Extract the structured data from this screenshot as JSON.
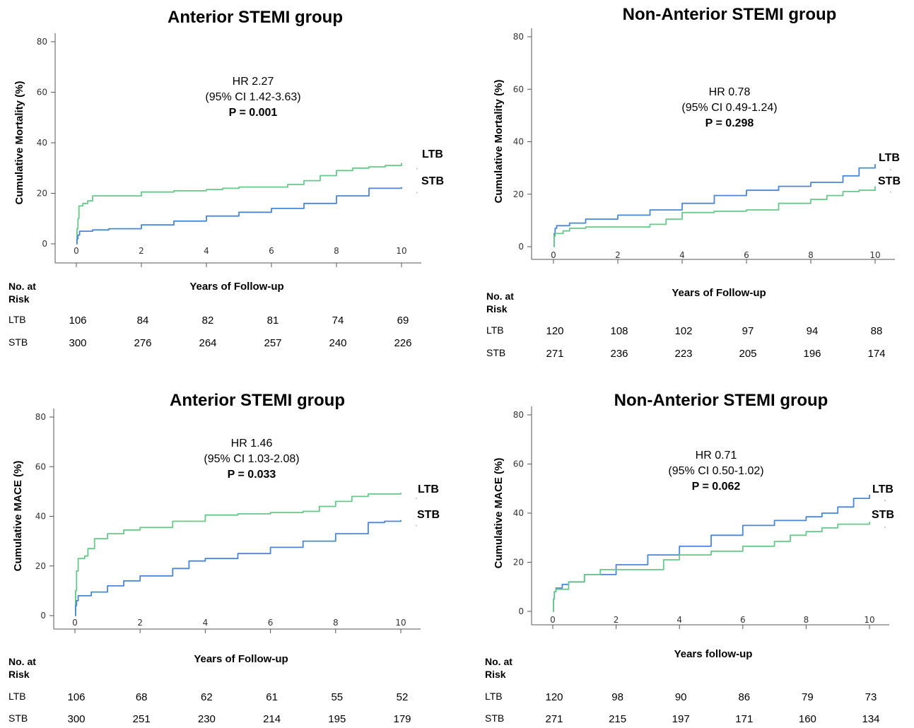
{
  "colors": {
    "LTB": "#66c98a",
    "STB": "#4a86d8"
  },
  "chart_data": [
    {
      "type": "line",
      "title": "Anterior STEMI group",
      "xlabel": "Years of Follow-up",
      "ylabel": "Cumulative Mortality (%)",
      "xlim": [
        0,
        10
      ],
      "ylim": [
        0,
        80
      ],
      "xticks": [
        0,
        2,
        4,
        6,
        8,
        10
      ],
      "yticks": [
        0,
        20,
        40,
        60,
        80
      ],
      "annotation": [
        "HR 2.27",
        "(95% CI 1.42-3.63)",
        "P = 0.001"
      ],
      "series": [
        {
          "name": "LTB",
          "x": [
            0,
            0.02,
            0.05,
            0.08,
            0.2,
            0.35,
            0.5,
            1,
            2,
            3,
            4,
            4.5,
            5,
            6,
            6.5,
            7,
            7.5,
            8,
            8.5,
            9,
            9.5,
            10
          ],
          "y": [
            0,
            6,
            10,
            15,
            16,
            17,
            19,
            19,
            20.5,
            21,
            21.5,
            22,
            22.5,
            22.5,
            23.5,
            25,
            27,
            29,
            30,
            30.5,
            31,
            32
          ]
        },
        {
          "name": "STB",
          "x": [
            0,
            0.02,
            0.05,
            0.1,
            0.5,
            1,
            2,
            3,
            4,
            5,
            6,
            7,
            8,
            9,
            10
          ],
          "y": [
            0,
            2,
            3.5,
            5,
            5.5,
            6,
            7.5,
            9,
            11,
            12.5,
            14,
            16,
            19,
            22,
            22.5
          ]
        }
      ],
      "risk": {
        "header": "No. at Risk",
        "times": [
          0,
          2,
          4,
          6,
          8,
          10
        ],
        "rows": [
          {
            "label": "LTB",
            "values": [
              "106",
              "84",
              "82",
              "81",
              "74",
              "69"
            ]
          },
          {
            "label": "STB",
            "values": [
              "300",
              "276",
              "264",
              "257",
              "240",
              "226"
            ]
          }
        ]
      }
    },
    {
      "type": "line",
      "title": "Non-Anterior STEMI group",
      "xlabel": "Years of Follow-up",
      "ylabel": "Cumulative Mortality (%)",
      "xlim": [
        0,
        10
      ],
      "ylim": [
        0,
        80
      ],
      "xticks": [
        0,
        2,
        4,
        6,
        8,
        10
      ],
      "yticks": [
        0,
        20,
        40,
        60,
        80
      ],
      "annotation": [
        "HR 0.78",
        "(95% CI 0.49-1.24)",
        "P = 0.298"
      ],
      "series": [
        {
          "name": "STB",
          "x": [
            0,
            0.02,
            0.05,
            0.1,
            0.5,
            1,
            2,
            3,
            4,
            5,
            6,
            7,
            8,
            9,
            9.5,
            10
          ],
          "y": [
            0,
            5,
            7,
            8,
            9,
            10.5,
            12,
            14,
            16.5,
            19.5,
            21.5,
            23,
            24.5,
            27,
            30,
            31.5
          ]
        },
        {
          "name": "LTB",
          "x": [
            0,
            0.02,
            0.05,
            0.3,
            0.5,
            1,
            2,
            3,
            3.5,
            4,
            5,
            6,
            7,
            8,
            8.5,
            9,
            9.5,
            10
          ],
          "y": [
            0,
            4,
            5,
            6,
            7,
            7.5,
            7.5,
            8.5,
            10.5,
            13,
            13.5,
            14,
            16.5,
            18,
            19.5,
            21,
            21.5,
            23
          ]
        }
      ],
      "risk": {
        "header": "No. at Risk",
        "times": [
          0,
          2,
          4,
          6,
          8,
          10
        ],
        "rows": [
          {
            "label": "LTB",
            "values": [
              "120",
              "108",
              "102",
              "97",
              "94",
              "88"
            ]
          },
          {
            "label": "STB",
            "values": [
              "271",
              "236",
              "223",
              "205",
              "196",
              "174"
            ]
          }
        ]
      }
    },
    {
      "type": "line",
      "title": "Anterior STEMI group",
      "xlabel": "Years of Follow-up",
      "ylabel": "Cumulative MACE (%)",
      "xlim": [
        0,
        10
      ],
      "ylim": [
        0,
        80
      ],
      "xticks": [
        0,
        2,
        4,
        6,
        8,
        10
      ],
      "yticks": [
        0,
        20,
        40,
        60,
        80
      ],
      "annotation": [
        "HR 1.46",
        "(95% CI 1.03-2.08)",
        "P = 0.033"
      ],
      "series": [
        {
          "name": "LTB",
          "x": [
            0,
            0.02,
            0.05,
            0.1,
            0.3,
            0.4,
            0.6,
            1,
            1.5,
            2,
            3,
            4,
            5,
            6,
            7,
            7.5,
            8,
            8.5,
            9,
            10
          ],
          "y": [
            0,
            10,
            18,
            23,
            24,
            27,
            31,
            33,
            34.5,
            35.5,
            38,
            40.5,
            41,
            41.5,
            42,
            44,
            46,
            48,
            49,
            49.5
          ]
        },
        {
          "name": "STB",
          "x": [
            0,
            0.02,
            0.05,
            0.1,
            0.5,
            1,
            1.5,
            2,
            3,
            3.5,
            4,
            5,
            6,
            7,
            8,
            9,
            9.5,
            10
          ],
          "y": [
            0,
            4,
            6,
            8,
            9.5,
            12,
            14,
            16,
            19,
            22,
            23,
            25,
            27.5,
            30,
            33,
            37.5,
            38,
            38.5
          ]
        }
      ],
      "risk": {
        "header": "No. at Risk",
        "times": [
          0,
          2,
          4,
          6,
          8,
          10
        ],
        "rows": [
          {
            "label": "LTB",
            "values": [
              "106",
              "68",
              "62",
              "61",
              "55",
              "52"
            ]
          },
          {
            "label": "STB",
            "values": [
              "300",
              "251",
              "230",
              "214",
              "195",
              "179"
            ]
          }
        ]
      }
    },
    {
      "type": "line",
      "title": "Non-Anterior STEMI group",
      "xlabel": "Years follow-up",
      "ylabel": "Cumulative MACE (%)",
      "xlim": [
        0,
        10
      ],
      "ylim": [
        0,
        80
      ],
      "xticks": [
        0,
        2,
        4,
        6,
        8,
        10
      ],
      "yticks": [
        0,
        20,
        40,
        60,
        80
      ],
      "annotation": [
        "HR 0.71",
        "(95% CI 0.50-1.02)",
        "P = 0.062"
      ],
      "series": [
        {
          "name": "STB",
          "x": [
            0,
            0.02,
            0.05,
            0.1,
            0.3,
            0.5,
            1,
            2,
            3,
            4,
            5,
            6,
            7,
            8,
            8.5,
            9,
            9.5,
            10
          ],
          "y": [
            0,
            5,
            8,
            9.5,
            11,
            12,
            15,
            19,
            23,
            26.5,
            31,
            35,
            37,
            38.5,
            40,
            42.5,
            46,
            47.5
          ]
        },
        {
          "name": "LTB",
          "x": [
            0,
            0.02,
            0.05,
            0.1,
            0.5,
            1,
            1.5,
            2,
            3,
            3.5,
            4,
            5,
            6,
            7,
            7.5,
            8,
            8.5,
            9,
            10
          ],
          "y": [
            0,
            5,
            8,
            9,
            12,
            15,
            17,
            17,
            17,
            21,
            23,
            24.5,
            26.5,
            28.5,
            31,
            32.5,
            34,
            35.5,
            36.5
          ]
        }
      ],
      "risk": {
        "header": "No. at Risk",
        "times": [
          0,
          2,
          4,
          6,
          8,
          10
        ],
        "rows": [
          {
            "label": "LTB",
            "values": [
              "120",
              "98",
              "90",
              "86",
              "79",
              "73"
            ]
          },
          {
            "label": "STB",
            "values": [
              "271",
              "215",
              "197",
              "171",
              "160",
              "134"
            ]
          }
        ]
      }
    }
  ]
}
